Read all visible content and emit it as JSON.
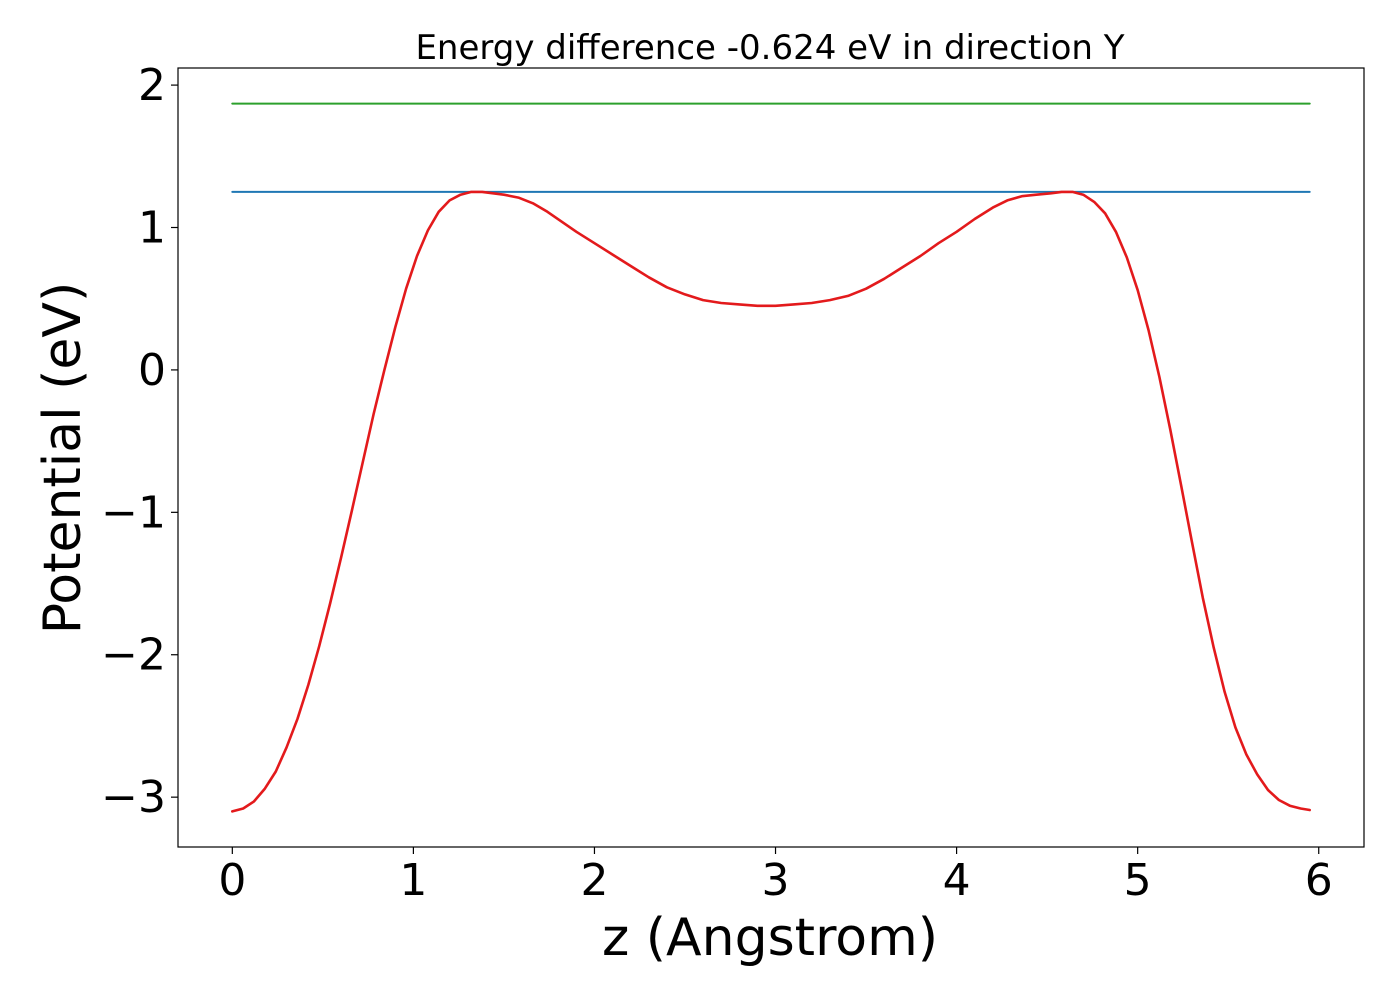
{
  "chart_data": {
    "type": "line",
    "title": "Energy difference -0.624 eV in direction Y",
    "xlabel": "z (Angstrom)",
    "ylabel": "Potential (eV)",
    "xlim": [
      -0.3,
      6.25
    ],
    "ylim": [
      -3.35,
      2.12
    ],
    "xticks": [
      0,
      1,
      2,
      3,
      4,
      5,
      6
    ],
    "xtick_labels": [
      "0",
      "1",
      "2",
      "3",
      "4",
      "5",
      "6"
    ],
    "yticks": [
      -3,
      -2,
      -1,
      0,
      1,
      2
    ],
    "ytick_labels": [
      "−3",
      "−2",
      "−1",
      "0",
      "1",
      "2"
    ],
    "grid": false,
    "series": [
      {
        "color": "#2ca02c",
        "x": [
          0,
          5.95
        ],
        "y": [
          1.87,
          1.87
        ]
      },
      {
        "color": "#1f77b4",
        "x": [
          0,
          5.95
        ],
        "y": [
          1.25,
          1.25
        ]
      },
      {
        "color": "#e31a1c",
        "x": [
          0.0,
          0.06,
          0.12,
          0.18,
          0.24,
          0.3,
          0.36,
          0.42,
          0.48,
          0.54,
          0.6,
          0.66,
          0.72,
          0.78,
          0.84,
          0.9,
          0.96,
          1.02,
          1.08,
          1.14,
          1.2,
          1.26,
          1.32,
          1.38,
          1.44,
          1.5,
          1.58,
          1.66,
          1.74,
          1.82,
          1.9,
          2.0,
          2.1,
          2.2,
          2.3,
          2.4,
          2.5,
          2.6,
          2.7,
          2.8,
          2.9,
          3.0,
          3.1,
          3.2,
          3.3,
          3.4,
          3.5,
          3.6,
          3.7,
          3.8,
          3.9,
          4.0,
          4.1,
          4.2,
          4.28,
          4.36,
          4.44,
          4.52,
          4.58,
          4.64,
          4.7,
          4.76,
          4.82,
          4.88,
          4.94,
          5.0,
          5.06,
          5.12,
          5.18,
          5.24,
          5.3,
          5.36,
          5.42,
          5.48,
          5.54,
          5.6,
          5.66,
          5.72,
          5.78,
          5.84,
          5.9,
          5.95
        ],
        "y": [
          -3.1,
          -3.08,
          -3.03,
          -2.94,
          -2.82,
          -2.65,
          -2.45,
          -2.21,
          -1.94,
          -1.64,
          -1.32,
          -0.99,
          -0.65,
          -0.31,
          0.0,
          0.3,
          0.57,
          0.8,
          0.98,
          1.11,
          1.19,
          1.23,
          1.25,
          1.25,
          1.24,
          1.23,
          1.21,
          1.17,
          1.11,
          1.04,
          0.97,
          0.89,
          0.81,
          0.73,
          0.65,
          0.58,
          0.53,
          0.49,
          0.47,
          0.46,
          0.45,
          0.45,
          0.46,
          0.47,
          0.49,
          0.52,
          0.57,
          0.64,
          0.72,
          0.8,
          0.89,
          0.97,
          1.06,
          1.14,
          1.19,
          1.22,
          1.23,
          1.24,
          1.25,
          1.25,
          1.23,
          1.18,
          1.1,
          0.97,
          0.79,
          0.56,
          0.28,
          -0.05,
          -0.42,
          -0.81,
          -1.21,
          -1.6,
          -1.95,
          -2.26,
          -2.51,
          -2.7,
          -2.84,
          -2.95,
          -3.02,
          -3.06,
          -3.08,
          -3.09
        ]
      }
    ]
  }
}
